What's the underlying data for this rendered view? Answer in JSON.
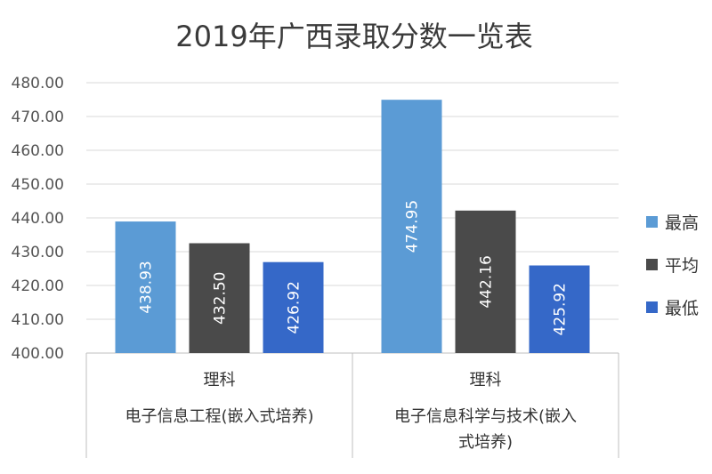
{
  "chart_data": {
    "type": "bar",
    "title": "2019年广西录取分数一览表",
    "ylim": [
      400,
      480
    ],
    "yticks": [
      "400.00",
      "410.00",
      "420.00",
      "430.00",
      "440.00",
      "450.00",
      "460.00",
      "470.00",
      "480.00"
    ],
    "grid": true,
    "legend_position": "right",
    "categories": [
      {
        "group": "理科",
        "name_lines": [
          "电子信息工程(嵌入式培养)"
        ]
      },
      {
        "group": "理科",
        "name_lines": [
          "电子信息科学与技术(嵌入",
          "式培养)"
        ]
      }
    ],
    "series": [
      {
        "name": "最高",
        "color": "#5b9bd5",
        "values": [
          438.93,
          474.95
        ],
        "labels": [
          "438.93",
          "474.95"
        ]
      },
      {
        "name": "平均",
        "color": "#4a4a4a",
        "values": [
          432.5,
          442.16
        ],
        "labels": [
          "432.50",
          "442.16"
        ]
      },
      {
        "name": "最低",
        "color": "#3568c8",
        "values": [
          426.92,
          425.92
        ],
        "labels": [
          "426.92",
          "425.92"
        ]
      }
    ]
  }
}
